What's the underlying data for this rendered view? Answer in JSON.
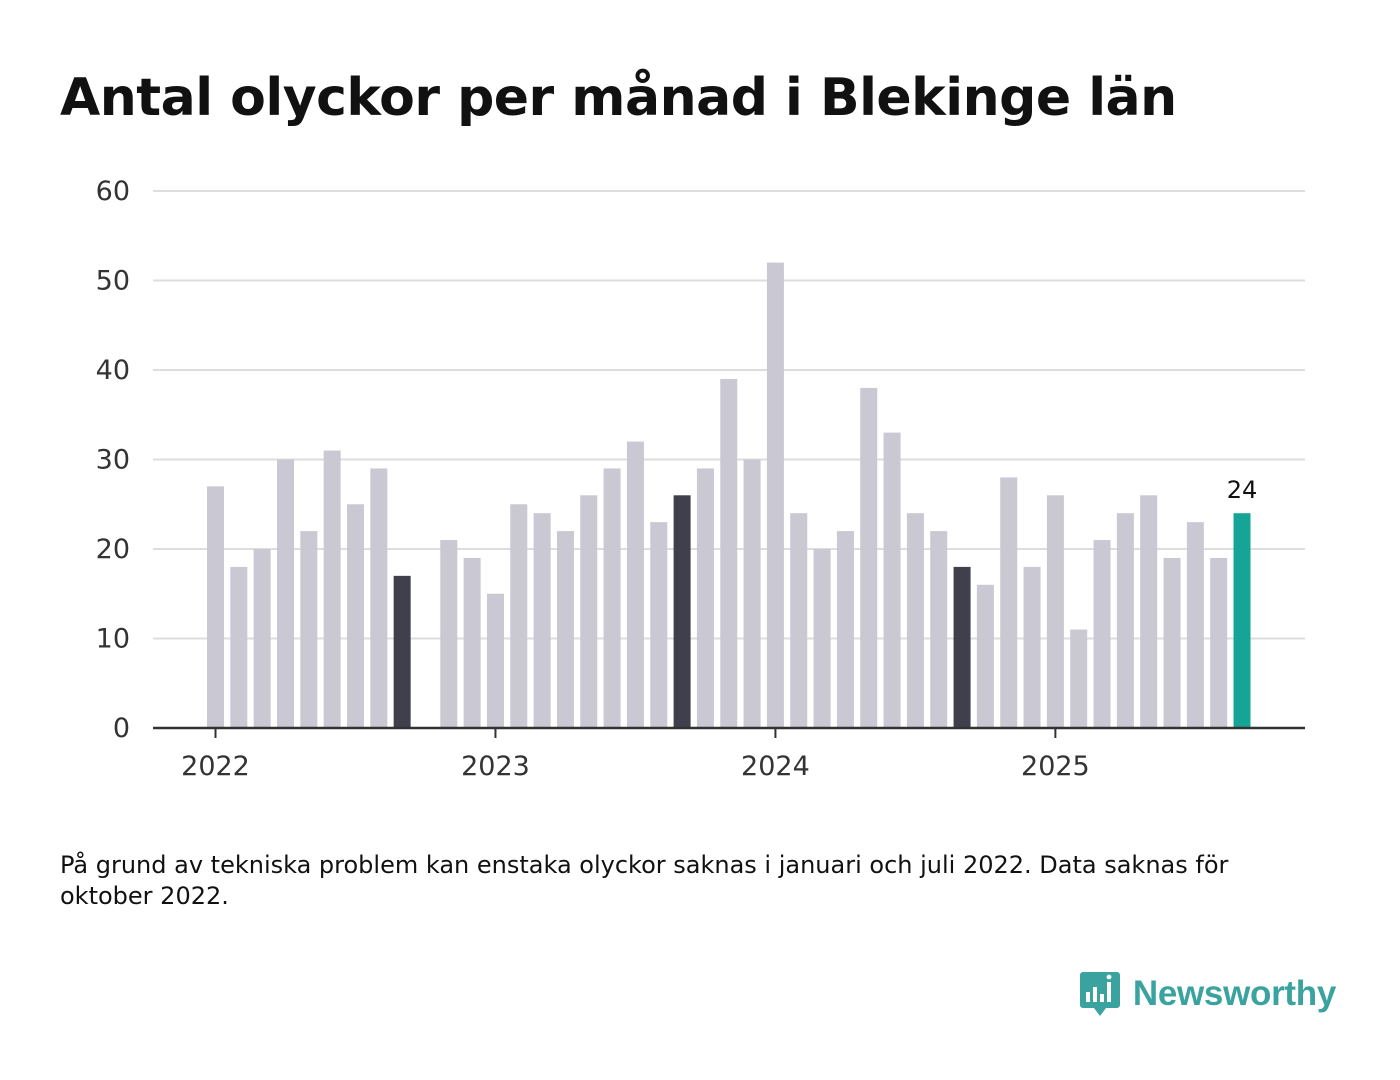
{
  "chart_data": {
    "type": "bar",
    "title": "Antal olyckor per månad i Blekinge län",
    "xlabel": "",
    "ylabel": "",
    "ylim": [
      0,
      60
    ],
    "yticks": [
      0,
      10,
      20,
      30,
      40,
      50,
      60
    ],
    "year_ticks": [
      "2022",
      "2023",
      "2024",
      "2025"
    ],
    "grid": true,
    "categories": [
      "2022-01",
      "2022-02",
      "2022-03",
      "2022-04",
      "2022-05",
      "2022-06",
      "2022-07",
      "2022-08",
      "2022-09",
      "2022-10",
      "2022-11",
      "2022-12",
      "2023-01",
      "2023-02",
      "2023-03",
      "2023-04",
      "2023-05",
      "2023-06",
      "2023-07",
      "2023-08",
      "2023-09",
      "2023-10",
      "2023-11",
      "2023-12",
      "2024-01",
      "2024-02",
      "2024-03",
      "2024-04",
      "2024-05",
      "2024-06",
      "2024-07",
      "2024-08",
      "2024-09",
      "2024-10",
      "2024-11",
      "2024-12",
      "2025-01",
      "2025-02",
      "2025-03",
      "2025-04",
      "2025-05",
      "2025-06",
      "2025-07",
      "2025-08",
      "2025-09"
    ],
    "values": [
      27,
      18,
      20,
      30,
      22,
      31,
      25,
      29,
      17,
      null,
      21,
      19,
      15,
      25,
      24,
      22,
      26,
      29,
      32,
      23,
      26,
      29,
      39,
      30,
      52,
      24,
      20,
      22,
      38,
      33,
      24,
      22,
      18,
      16,
      28,
      18,
      26,
      11,
      21,
      24,
      26,
      19,
      23,
      19,
      24
    ],
    "highlight_months": [
      "2022-09",
      "2023-09",
      "2024-09"
    ],
    "latest_month": "2025-09",
    "latest_label": "24",
    "colors": {
      "default": "#c9c8d3",
      "highlight": "#403f4c",
      "latest": "#15a596",
      "grid": "#dddddd",
      "axis": "#333333"
    }
  },
  "note": "På grund av tekniska problem kan enstaka olyckor saknas i januari och juli 2022. Data saknas för oktober 2022.",
  "brand": {
    "name": "Newsworthy",
    "icon": "newsworthy-logo-icon"
  }
}
